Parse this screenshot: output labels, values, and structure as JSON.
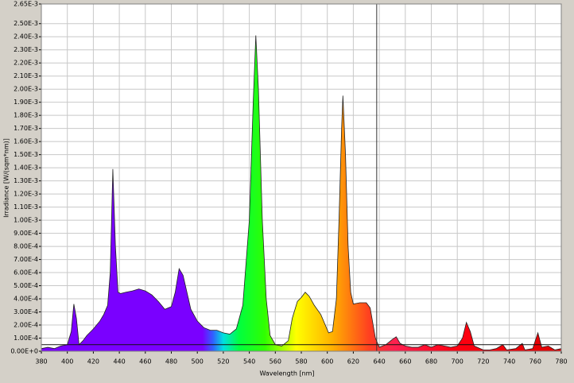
{
  "chart_data": {
    "type": "area",
    "x_label": "Wavelength [nm]",
    "y_label": "Irradiance [W/(sqm*nm)]",
    "xlim": [
      380,
      780
    ],
    "xticks": [
      380,
      400,
      420,
      440,
      460,
      480,
      500,
      520,
      540,
      560,
      580,
      600,
      620,
      640,
      660,
      680,
      700,
      720,
      740,
      760,
      780
    ],
    "ylim": [
      0,
      0.00265
    ],
    "yticks": [
      {
        "value": 0,
        "label": "0.00E+0"
      },
      {
        "value": 0.0001,
        "label": "1.00E-4"
      },
      {
        "value": 0.0002,
        "label": "2.00E-4"
      },
      {
        "value": 0.0003,
        "label": "3.00E-4"
      },
      {
        "value": 0.0004,
        "label": "4.00E-4"
      },
      {
        "value": 0.0005,
        "label": "5.00E-4"
      },
      {
        "value": 0.0006,
        "label": "6.00E-4"
      },
      {
        "value": 0.0007,
        "label": "7.00E-4"
      },
      {
        "value": 0.0008,
        "label": "8.00E-4"
      },
      {
        "value": 0.0009,
        "label": "9.00E-4"
      },
      {
        "value": 0.001,
        "label": "1.00E-3"
      },
      {
        "value": 0.0011,
        "label": "1.10E-3"
      },
      {
        "value": 0.0012,
        "label": "1.20E-3"
      },
      {
        "value": 0.0013,
        "label": "1.30E-3"
      },
      {
        "value": 0.0014,
        "label": "1.40E-3"
      },
      {
        "value": 0.0015,
        "label": "1.50E-3"
      },
      {
        "value": 0.0016,
        "label": "1.60E-3"
      },
      {
        "value": 0.0017,
        "label": "1.70E-3"
      },
      {
        "value": 0.0018,
        "label": "1.80E-3"
      },
      {
        "value": 0.0019,
        "label": "1.90E-3"
      },
      {
        "value": 0.002,
        "label": "2.00E-3"
      },
      {
        "value": 0.0021,
        "label": "2.10E-3"
      },
      {
        "value": 0.0022,
        "label": "2.20E-3"
      },
      {
        "value": 0.0023,
        "label": "2.30E-3"
      },
      {
        "value": 0.0024,
        "label": "2.40E-3"
      },
      {
        "value": 0.0025,
        "label": "2.50E-3"
      },
      {
        "value": 0.00265,
        "label": "2.65E-3"
      }
    ],
    "grid": true,
    "cursor_x": 638,
    "cursor_y": 5e-05,
    "x": [
      380,
      385,
      390,
      395,
      400,
      403,
      405,
      407,
      409,
      412,
      415,
      420,
      425,
      428,
      431,
      433,
      435,
      437,
      439,
      441,
      445,
      450,
      455,
      460,
      465,
      470,
      475,
      480,
      483,
      486,
      489,
      492,
      495,
      500,
      505,
      510,
      515,
      520,
      525,
      530,
      535,
      540,
      543,
      545,
      547,
      550,
      553,
      556,
      560,
      565,
      570,
      573,
      577,
      580,
      583,
      586,
      590,
      595,
      598,
      601,
      604,
      607,
      609,
      611,
      612,
      614,
      616,
      618,
      620,
      625,
      630,
      633,
      637,
      640,
      645,
      650,
      653,
      656,
      660,
      665,
      670,
      675,
      680,
      685,
      690,
      695,
      700,
      704,
      707,
      710,
      713,
      720,
      725,
      730,
      735,
      738,
      745,
      750,
      752,
      758,
      762,
      765,
      770,
      775,
      780
    ],
    "values": [
      2e-05,
      3e-05,
      2e-05,
      4e-05,
      5e-05,
      0.00015,
      0.00036,
      0.00025,
      5e-05,
      8e-05,
      0.00012,
      0.00017,
      0.00023,
      0.00028,
      0.00035,
      0.0006,
      0.00139,
      0.0008,
      0.00045,
      0.00044,
      0.00045,
      0.00046,
      0.000475,
      0.00046,
      0.00043,
      0.00038,
      0.00032,
      0.00034,
      0.00045,
      0.00063,
      0.00058,
      0.00045,
      0.00032,
      0.00023,
      0.00018,
      0.00016,
      0.00016,
      0.00014,
      0.00013,
      0.00017,
      0.00035,
      0.001,
      0.0019,
      0.00241,
      0.002,
      0.001,
      0.0004,
      0.00012,
      5e-05,
      4e-05,
      8e-05,
      0.00025,
      0.00038,
      0.00041,
      0.00045,
      0.00042,
      0.00035,
      0.00028,
      0.00021,
      0.00014,
      0.00015,
      0.0004,
      0.001,
      0.0017,
      0.00195,
      0.0015,
      0.0008,
      0.00045,
      0.00036,
      0.00037,
      0.00037,
      0.00033,
      0.0001,
      3e-05,
      5e-05,
      9e-05,
      0.00011,
      6e-05,
      4e-05,
      3e-05,
      3e-05,
      5e-05,
      3e-05,
      5e-05,
      4e-05,
      3e-05,
      4e-05,
      0.0001,
      0.00022,
      0.00015,
      4e-05,
      1e-05,
      1e-05,
      2e-05,
      5e-05,
      1e-05,
      2e-05,
      6e-05,
      1e-05,
      2e-05,
      0.00014,
      3e-05,
      4e-05,
      1e-05,
      2e-05
    ]
  }
}
